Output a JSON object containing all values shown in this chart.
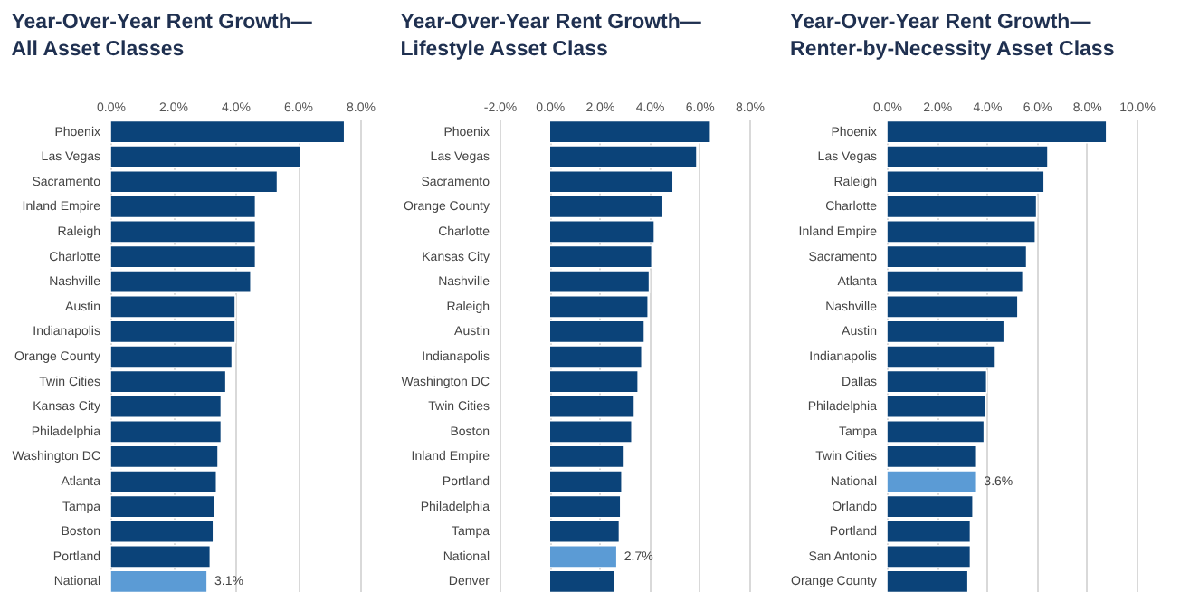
{
  "chart_data": [
    {
      "type": "bar",
      "orientation": "horizontal",
      "title": "Year-Over-Year Rent Growth—All Asset Classes",
      "grid": "x",
      "categories": [
        "Phoenix",
        "Las Vegas",
        "Sacramento",
        "Inland Empire",
        "Raleigh",
        "Charlotte",
        "Nashville",
        "Austin",
        "Indianapolis",
        "Orange County",
        "Twin Cities",
        "Kansas City",
        "Philadelphia",
        "Washington DC",
        "Atlanta",
        "Tampa",
        "Boston",
        "Portland",
        "National"
      ],
      "values": [
        7.5,
        6.1,
        5.35,
        4.65,
        4.65,
        4.65,
        4.5,
        4.0,
        4.0,
        3.9,
        3.7,
        3.55,
        3.55,
        3.45,
        3.4,
        3.35,
        3.3,
        3.2,
        3.1
      ],
      "colors": [
        "#0b4379",
        "#0b4379",
        "#0b4379",
        "#0b4379",
        "#0b4379",
        "#0b4379",
        "#0b4379",
        "#0b4379",
        "#0b4379",
        "#0b4379",
        "#0b4379",
        "#0b4379",
        "#0b4379",
        "#0b4379",
        "#0b4379",
        "#0b4379",
        "#0b4379",
        "#0b4379",
        "#5b9bd5"
      ],
      "value_labels": [
        null,
        null,
        null,
        null,
        null,
        null,
        null,
        null,
        null,
        null,
        null,
        null,
        null,
        null,
        null,
        null,
        null,
        null,
        "3.1%"
      ],
      "xlim": [
        0,
        8
      ],
      "xticks": [
        {
          "value": 0,
          "label": "0.0%"
        },
        {
          "value": 2,
          "label": "2.0%"
        },
        {
          "value": 4,
          "label": "4.0%"
        },
        {
          "value": 6,
          "label": "6.0%"
        },
        {
          "value": 8,
          "label": "8.0%"
        }
      ]
    },
    {
      "type": "bar",
      "orientation": "horizontal",
      "title": "Year-Over-Year Rent Growth—Lifestyle Asset Class",
      "grid": "x",
      "categories": [
        "Phoenix",
        "Las Vegas",
        "Sacramento",
        "Orange County",
        "Charlotte",
        "Kansas City",
        "Nashville",
        "Raleigh",
        "Austin",
        "Indianapolis",
        "Washington DC",
        "Twin Cities",
        "Boston",
        "Inland Empire",
        "Portland",
        "Philadelphia",
        "Tampa",
        "National",
        "Denver"
      ],
      "values": [
        6.45,
        5.9,
        4.95,
        4.55,
        4.2,
        4.1,
        4.0,
        3.95,
        3.8,
        3.7,
        3.55,
        3.4,
        3.3,
        3.0,
        2.9,
        2.85,
        2.8,
        2.7,
        2.6
      ],
      "colors": [
        "#0b4379",
        "#0b4379",
        "#0b4379",
        "#0b4379",
        "#0b4379",
        "#0b4379",
        "#0b4379",
        "#0b4379",
        "#0b4379",
        "#0b4379",
        "#0b4379",
        "#0b4379",
        "#0b4379",
        "#0b4379",
        "#0b4379",
        "#0b4379",
        "#0b4379",
        "#5b9bd5",
        "#0b4379"
      ],
      "value_labels": [
        null,
        null,
        null,
        null,
        null,
        null,
        null,
        null,
        null,
        null,
        null,
        null,
        null,
        null,
        null,
        null,
        null,
        "2.7%",
        null
      ],
      "xlim": [
        -2,
        8
      ],
      "xticks": [
        {
          "value": -2,
          "label": "-2.0%"
        },
        {
          "value": 0,
          "label": "0.0%"
        },
        {
          "value": 2,
          "label": "2.0%"
        },
        {
          "value": 4,
          "label": "4.0%"
        },
        {
          "value": 6,
          "label": "6.0%"
        },
        {
          "value": 8,
          "label": "8.0%"
        }
      ]
    },
    {
      "type": "bar",
      "orientation": "horizontal",
      "title": "Year-Over-Year Rent Growth—Renter-by-Necessity Asset Class",
      "grid": "x",
      "categories": [
        "Phoenix",
        "Las Vegas",
        "Raleigh",
        "Charlotte",
        "Inland Empire",
        "Sacramento",
        "Atlanta",
        "Nashville",
        "Austin",
        "Indianapolis",
        "Dallas",
        "Philadelphia",
        "Tampa",
        "Twin Cities",
        "National",
        "Orlando",
        "Portland",
        "San Antonio",
        "Orange County"
      ],
      "values": [
        8.8,
        6.45,
        6.3,
        6.0,
        5.95,
        5.6,
        5.45,
        5.25,
        4.7,
        4.35,
        4.0,
        3.95,
        3.9,
        3.6,
        3.6,
        3.45,
        3.35,
        3.35,
        3.25
      ],
      "colors": [
        "#0b4379",
        "#0b4379",
        "#0b4379",
        "#0b4379",
        "#0b4379",
        "#0b4379",
        "#0b4379",
        "#0b4379",
        "#0b4379",
        "#0b4379",
        "#0b4379",
        "#0b4379",
        "#0b4379",
        "#0b4379",
        "#5b9bd5",
        "#0b4379",
        "#0b4379",
        "#0b4379",
        "#0b4379"
      ],
      "value_labels": [
        null,
        null,
        null,
        null,
        null,
        null,
        null,
        null,
        null,
        null,
        null,
        null,
        null,
        null,
        "3.6%",
        null,
        null,
        null,
        null
      ],
      "xlim": [
        0,
        10
      ],
      "xticks": [
        {
          "value": 0,
          "label": "0.0%"
        },
        {
          "value": 2,
          "label": "2.0%"
        },
        {
          "value": 4,
          "label": "4.0%"
        },
        {
          "value": 6,
          "label": "6.0%"
        },
        {
          "value": 8,
          "label": "8.0%"
        },
        {
          "value": 10,
          "label": "10.0%"
        }
      ]
    }
  ]
}
